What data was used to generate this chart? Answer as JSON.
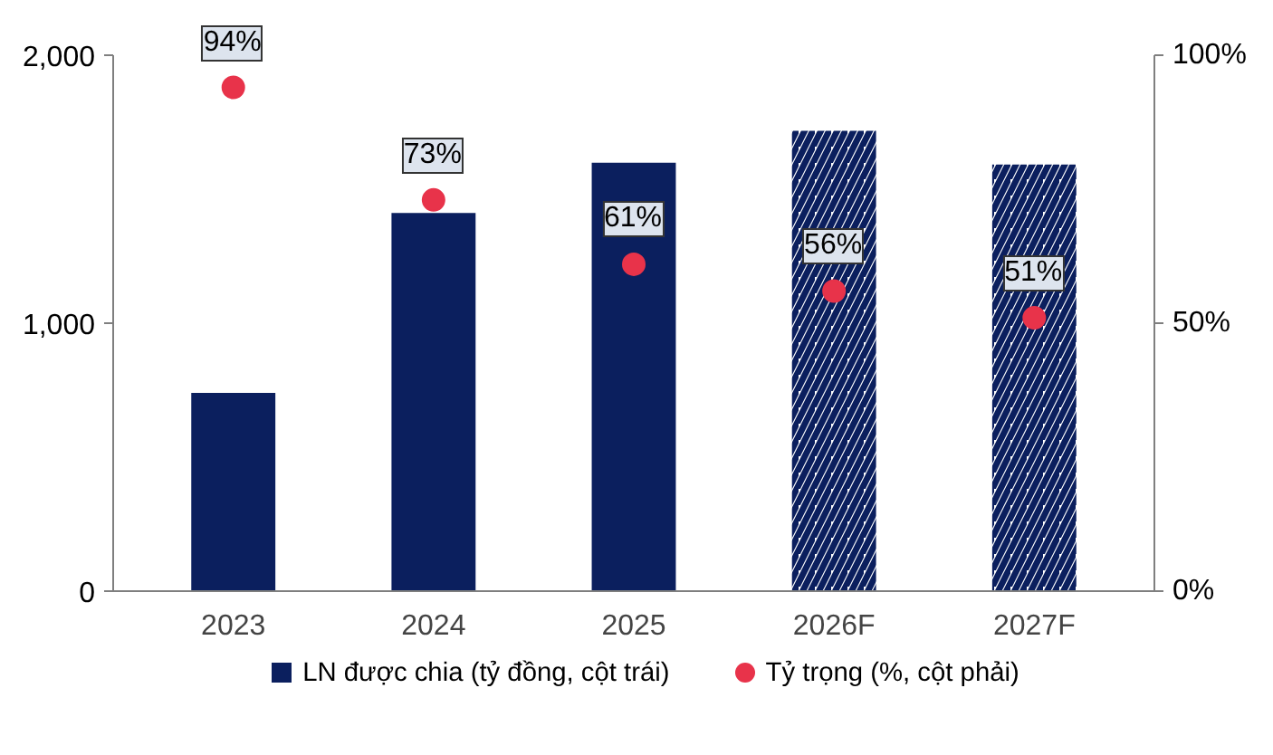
{
  "chart_data": {
    "type": "bar",
    "categories": [
      "2023",
      "2024",
      "2025",
      "2026F",
      "2027F"
    ],
    "series": [
      {
        "name": "LN được chia (tỷ đồng, cột trái)",
        "color": "#0b1f5e",
        "values": [
          740,
          1411,
          1599,
          null,
          null
        ]
      },
      {
        "color": "#0b1f5e",
        "values": [
          null,
          null,
          null,
          1718,
          1592
        ]
      },
      {
        "name": "Tỷ trọng (%, cột phải)",
        "type": "scatter",
        "axis": "y2",
        "color": "#e8334a",
        "values": [
          94,
          73,
          61,
          56,
          51
        ],
        "value_labels": [
          "94%",
          "73%",
          "61%",
          "56%",
          "51%"
        ]
      }
    ],
    "ylim": [
      0,
      2000
    ],
    "yticks": [
      0,
      {
        "value": 1000,
        "label": "1,000"
      },
      {
        "value": 2000,
        "label": "2,000"
      }
    ],
    "y2lim": [
      0,
      100
    ],
    "y2ticks": [
      {
        "value": 0,
        "label": "0%"
      },
      {
        "value": 50,
        "label": "50%"
      },
      {
        "value": 100,
        "label": "100%"
      }
    ],
    "grid": false,
    "legend": "bottom",
    "marker": "circle"
  }
}
